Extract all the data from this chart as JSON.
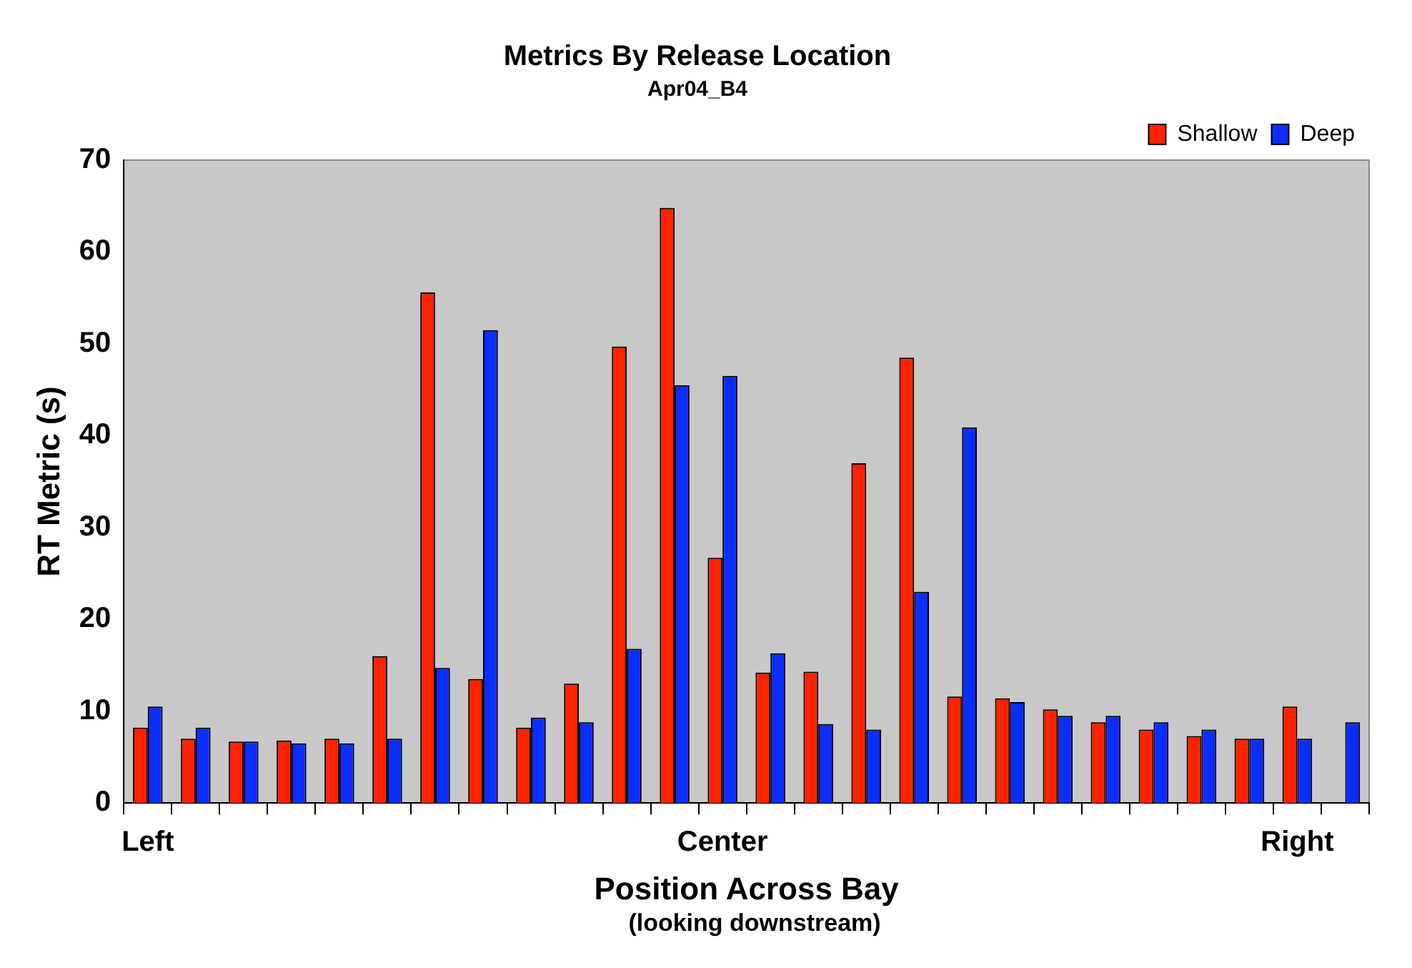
{
  "chart_data": {
    "type": "bar",
    "title": "Metrics By Release Location",
    "subtitle": "Apr04_B4",
    "xlabel": "Position Across Bay",
    "ylabel": "RT Metric (s)",
    "annotations": [
      "(looking downstream)"
    ],
    "categories": [
      "Left",
      null,
      null,
      null,
      null,
      null,
      null,
      null,
      null,
      null,
      null,
      null,
      "Center",
      null,
      null,
      null,
      null,
      null,
      null,
      null,
      null,
      null,
      null,
      null,
      "Right",
      null
    ],
    "series": [
      {
        "name": "Shallow",
        "color": "#ff2200",
        "values": [
          8.2,
          7.0,
          6.7,
          6.8,
          7.0,
          16.0,
          55.6,
          13.5,
          8.2,
          13.0,
          49.7,
          64.8,
          26.7,
          14.2,
          14.3,
          37.0,
          48.5,
          11.6,
          11.4,
          10.2,
          8.8,
          8.0,
          7.3,
          7.0,
          10.5,
          null
        ]
      },
      {
        "name": "Deep",
        "color": "#0a2eff",
        "values": [
          10.5,
          8.2,
          6.7,
          6.5,
          6.5,
          7.0,
          14.7,
          51.5,
          9.3,
          8.8,
          16.8,
          45.5,
          46.5,
          16.3,
          8.6,
          8.0,
          23.0,
          40.9,
          11.0,
          9.5,
          9.5,
          8.8,
          8.0,
          7.0,
          7.0,
          8.8
        ]
      }
    ],
    "ylim": [
      0,
      70
    ],
    "yticks": [
      0,
      10,
      20,
      30,
      40,
      50,
      60,
      70
    ],
    "grid": false,
    "legend": "top right"
  }
}
